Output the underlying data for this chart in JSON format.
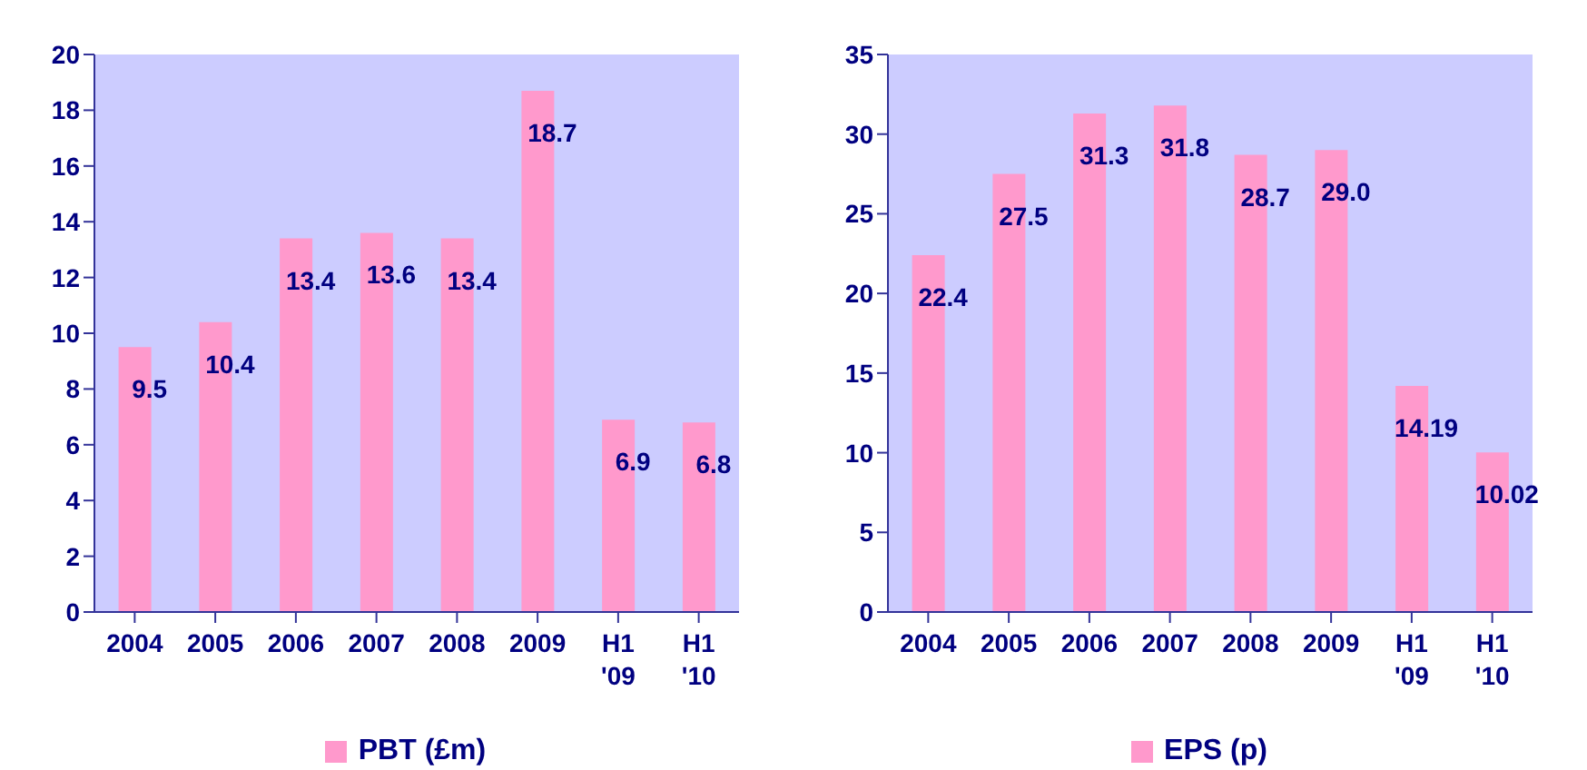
{
  "chart_data": [
    {
      "type": "bar",
      "categories": [
        "2004",
        "2005",
        "2006",
        "2007",
        "2008",
        "2009",
        "H1 '09",
        "H1 '10"
      ],
      "series": [
        {
          "name": "PBT (£m)",
          "color": "#ff99cc",
          "values": [
            9.5,
            10.4,
            13.4,
            13.6,
            13.4,
            18.7,
            6.9,
            6.8
          ],
          "value_labels": [
            "9.5",
            "10.4",
            "13.4",
            "13.6",
            "13.4",
            "18.7",
            "6.9",
            "6.8"
          ]
        }
      ],
      "ylim": [
        0,
        20
      ],
      "yticks": [
        0,
        2,
        4,
        6,
        8,
        10,
        12,
        14,
        16,
        18,
        20
      ],
      "grid": false,
      "legend": "bottom"
    },
    {
      "type": "bar",
      "categories": [
        "2004",
        "2005",
        "2006",
        "2007",
        "2008",
        "2009",
        "H1 '09",
        "H1 '10"
      ],
      "series": [
        {
          "name": "EPS (p)",
          "color": "#ff99cc",
          "values": [
            22.4,
            27.5,
            31.3,
            31.8,
            28.7,
            29.0,
            14.19,
            10.02
          ],
          "value_labels": [
            "22.4",
            "27.5",
            "31.3",
            "31.8",
            "28.7",
            "29.0",
            "14.19",
            "10.02"
          ]
        }
      ],
      "ylim": [
        0,
        35
      ],
      "yticks": [
        0,
        5,
        10,
        15,
        20,
        25,
        30,
        35
      ],
      "grid": false,
      "legend": "bottom"
    }
  ]
}
